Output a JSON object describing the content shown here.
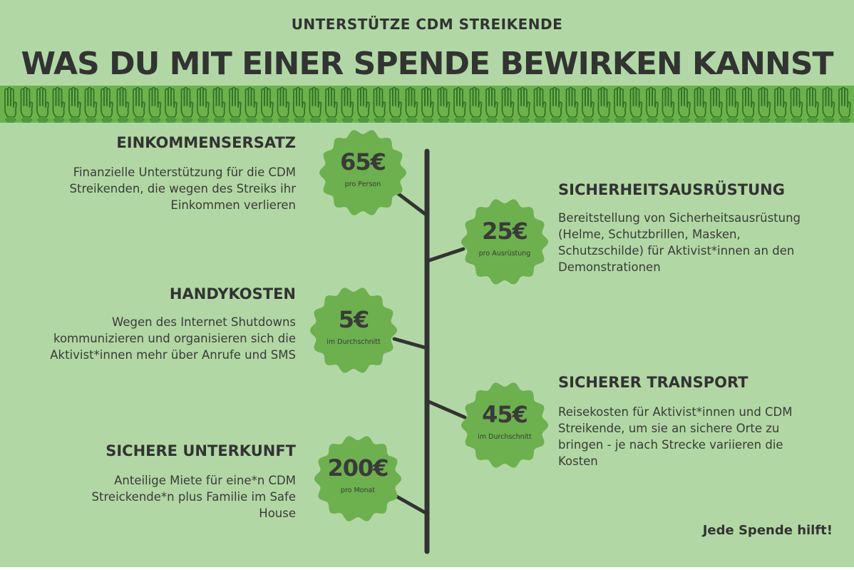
{
  "header": {
    "subtitle": "UNTERSTÜTZE CDM STREIKENDE",
    "title": "WAS DU MIT EINER SPENDE BEWIRKEN KANNST"
  },
  "decor": {
    "band_icon": "three-finger-salute-hands-icon",
    "band_color": "#4f9a3b"
  },
  "colors": {
    "background": "#b1d8a4",
    "badge": "#6db04e",
    "text": "#333333",
    "timeline": "#333333"
  },
  "items": [
    {
      "heading": "EINKOMMENSERSATZ",
      "text": "Finanzielle Unterstützung für die CDM Streikenden, die wegen des Streiks ihr Einkommen verlieren",
      "amount": "65€",
      "unit": "pro Person"
    },
    {
      "heading": "SICHERHEITSAUSRÜSTUNG",
      "text": "Bereitstellung von Sicherheitsausrüstung (Helme, Schutzbrillen, Masken, Schutzschilde) für Aktivist*innen an den Demonstrationen",
      "amount": "25€",
      "unit": "pro Ausrüstung"
    },
    {
      "heading": "HANDYKOSTEN",
      "text": "Wegen des Internet Shutdowns kommunizieren und organisieren sich die Aktivist*innen mehr über Anrufe und SMS",
      "amount": "5€",
      "unit": "im Durchschnitt"
    },
    {
      "heading": "SICHERER TRANSPORT",
      "text": "Reisekosten für Aktivist*innen und CDM Streikende, um sie an sichere Orte zu bringen - je  nach Strecke variieren die Kosten",
      "amount": "45€",
      "unit": "im Durchschnitt"
    },
    {
      "heading": "SICHERE UNTERKUNFT",
      "text": "Anteilige Miete für eine*n CDM Streickende*n plus Familie im Safe House",
      "amount": "200€",
      "unit": "pro Monat"
    }
  ],
  "footer": {
    "note": "Jede Spende hilft!"
  }
}
